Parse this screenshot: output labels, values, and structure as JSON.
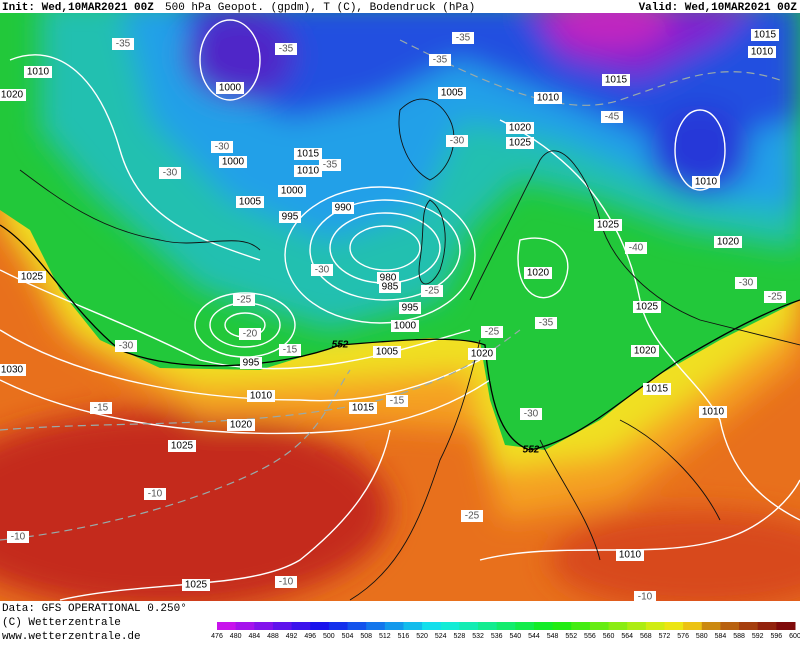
{
  "header": {
    "init": "Init: Wed,10MAR2021 00Z",
    "title": "500 hPa Geopot. (gpdm), T (C), Bodendruck (hPa)",
    "valid": "Valid: Wed,10MAR2021 00Z"
  },
  "footer": {
    "data": "Data: GFS OPERATIONAL 0.250°",
    "copyright": "(C) Wetterzentrale",
    "url": "www.wetterzentrale.de"
  },
  "colorbar": {
    "labels": [
      476,
      480,
      484,
      488,
      492,
      496,
      500,
      504,
      508,
      512,
      516,
      520,
      524,
      528,
      532,
      536,
      540,
      544,
      548,
      552,
      556,
      560,
      564,
      568,
      572,
      576,
      580,
      584,
      588,
      592,
      596,
      600
    ]
  },
  "map": {
    "labels": [
      1015,
      1010,
      1015,
      1010,
      1005,
      1000,
      1010,
      1020,
      -35,
      -35,
      -35,
      -35,
      -45,
      -30,
      -30,
      1000,
      1015,
      1010,
      -35,
      1000,
      1005,
      995,
      990,
      1020,
      1025,
      -30,
      1010,
      1025,
      -40,
      1020,
      1020,
      -30,
      980,
      985,
      -25,
      995,
      1000,
      -25,
      -20,
      1025,
      -30,
      -15,
      552,
      1005,
      1020,
      -25,
      -35,
      1025,
      1020,
      -30,
      -25,
      1015,
      1010,
      1030,
      1010,
      1015,
      -15,
      -15,
      1020,
      -30,
      552,
      1025,
      -10,
      -10,
      -25,
      1010,
      1025,
      -10,
      -10,
      995
    ]
  }
}
